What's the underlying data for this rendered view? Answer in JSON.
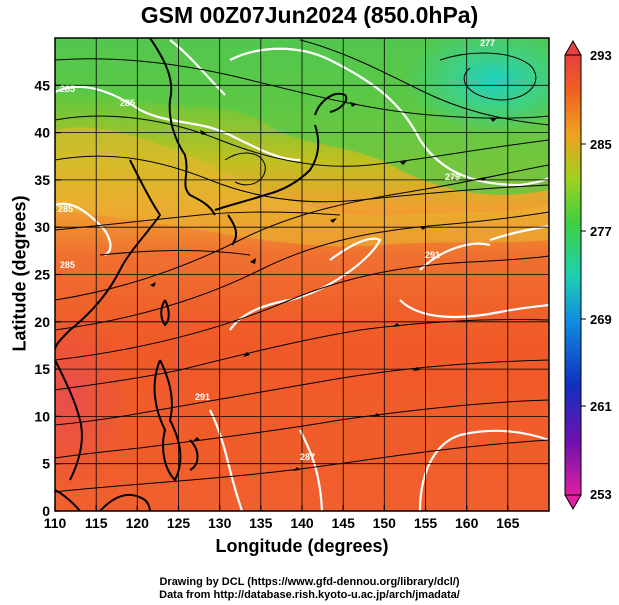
{
  "title": "GSM 00Z07Jun2024 (850.0hPa)",
  "x_axis": {
    "label": "Longitude (degrees)",
    "range": [
      110,
      170
    ],
    "ticks": [
      "110",
      "115",
      "120",
      "125",
      "130",
      "135",
      "140",
      "145",
      "150",
      "155",
      "160",
      "165"
    ]
  },
  "y_axis": {
    "label": "Latitude  (degrees)",
    "range": [
      0,
      50
    ],
    "ticks": [
      "0",
      "5",
      "10",
      "15",
      "20",
      "25",
      "30",
      "35",
      "40",
      "45"
    ]
  },
  "colorbar": {
    "labels": [
      "293",
      "285",
      "277",
      "269",
      "261",
      "253"
    ],
    "range": [
      253,
      293
    ],
    "colors": [
      "#e0209a",
      "#6010b0",
      "#1040d0",
      "#10a0e0",
      "#20d0a0",
      "#40d040",
      "#a0d020",
      "#f0a020",
      "#f06020",
      "#e84040"
    ]
  },
  "contour_labels": [
    "285",
    "285",
    "285",
    "285",
    "291",
    "291",
    "277",
    "279",
    "287"
  ],
  "credits": {
    "line1": "Drawing by DCL (https://www.gfd-dennou.org/library/dcl/)",
    "line2": "Data from http://database.rish.kyoto-u.ac.jp/arch/jmadata/"
  }
}
